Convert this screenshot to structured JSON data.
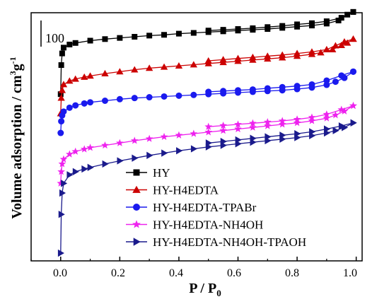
{
  "chart_data": {
    "type": "line",
    "xlabel_main": "P / P",
    "xlabel_sub": "0",
    "ylabel_main": "Volume adsorption / cm",
    "ylabel_sup": "3",
    "ylabel_g": "g",
    "ylabel_sup2": "-1",
    "scale_bar_label": "100",
    "xlim": [
      -0.1,
      1.02
    ],
    "ylim": [
      0,
      640
    ],
    "x_ticks": [
      "0.0",
      "0.2",
      "0.4",
      "0.6",
      "0.8",
      "1.0"
    ],
    "x_tick_values": [
      0.0,
      0.2,
      0.4,
      0.6,
      0.8,
      1.0
    ],
    "grid": false,
    "legend_position": "lower-center",
    "series": [
      {
        "name": "HY",
        "color": "#000000",
        "marker": "square",
        "adsorption": [
          [
            0.0,
            430
          ],
          [
            0.002,
            505
          ],
          [
            0.005,
            535
          ],
          [
            0.01,
            550
          ],
          [
            0.03,
            558
          ],
          [
            0.05,
            562
          ],
          [
            0.1,
            568
          ],
          [
            0.15,
            572
          ],
          [
            0.2,
            575
          ],
          [
            0.25,
            578
          ],
          [
            0.3,
            581
          ],
          [
            0.35,
            583
          ],
          [
            0.4,
            586
          ],
          [
            0.45,
            588
          ],
          [
            0.5,
            590
          ],
          [
            0.55,
            592
          ],
          [
            0.6,
            594
          ],
          [
            0.65,
            596
          ],
          [
            0.7,
            598
          ],
          [
            0.75,
            601
          ],
          [
            0.8,
            604
          ],
          [
            0.85,
            607
          ],
          [
            0.9,
            612
          ],
          [
            0.94,
            620
          ],
          [
            0.97,
            635
          ],
          [
            0.99,
            642
          ]
        ],
        "desorption": [
          [
            0.99,
            642
          ],
          [
            0.95,
            627
          ],
          [
            0.9,
            618
          ],
          [
            0.85,
            613
          ],
          [
            0.8,
            610
          ],
          [
            0.75,
            606
          ],
          [
            0.7,
            603
          ],
          [
            0.65,
            600
          ],
          [
            0.6,
            598
          ],
          [
            0.55,
            596
          ],
          [
            0.5,
            594
          ]
        ]
      },
      {
        "name": "HY-H4EDTA",
        "color": "#cc0000",
        "marker": "triangle-up",
        "adsorption": [
          [
            0.0,
            380
          ],
          [
            0.002,
            420
          ],
          [
            0.005,
            440
          ],
          [
            0.01,
            455
          ],
          [
            0.03,
            464
          ],
          [
            0.05,
            469
          ],
          [
            0.08,
            474
          ],
          [
            0.1,
            477
          ],
          [
            0.15,
            483
          ],
          [
            0.2,
            488
          ],
          [
            0.25,
            493
          ],
          [
            0.3,
            497
          ],
          [
            0.35,
            500
          ],
          [
            0.4,
            503
          ],
          [
            0.45,
            506
          ],
          [
            0.5,
            509
          ],
          [
            0.55,
            512
          ],
          [
            0.6,
            515
          ],
          [
            0.65,
            518
          ],
          [
            0.7,
            521
          ],
          [
            0.75,
            524
          ],
          [
            0.8,
            528
          ],
          [
            0.85,
            533
          ],
          [
            0.88,
            537
          ],
          [
            0.92,
            545
          ],
          [
            0.95,
            556
          ],
          [
            0.97,
            562
          ],
          [
            0.99,
            572
          ]
        ],
        "desorption": [
          [
            0.99,
            572
          ],
          [
            0.96,
            565
          ],
          [
            0.93,
            555
          ],
          [
            0.9,
            545
          ],
          [
            0.85,
            539
          ],
          [
            0.8,
            535
          ],
          [
            0.75,
            531
          ],
          [
            0.7,
            528
          ],
          [
            0.65,
            525
          ],
          [
            0.6,
            522
          ],
          [
            0.55,
            519
          ],
          [
            0.5,
            516
          ]
        ]
      },
      {
        "name": "HY-H4EDTA-TPABr",
        "color": "#1a1aee",
        "marker": "circle",
        "adsorption": [
          [
            0.0,
            330
          ],
          [
            0.002,
            360
          ],
          [
            0.005,
            375
          ],
          [
            0.01,
            385
          ],
          [
            0.03,
            395
          ],
          [
            0.05,
            401
          ],
          [
            0.08,
            406
          ],
          [
            0.1,
            409
          ],
          [
            0.15,
            413
          ],
          [
            0.2,
            417
          ],
          [
            0.25,
            420
          ],
          [
            0.3,
            422
          ],
          [
            0.35,
            424
          ],
          [
            0.4,
            426
          ],
          [
            0.45,
            428
          ],
          [
            0.5,
            430
          ],
          [
            0.55,
            432
          ],
          [
            0.6,
            434
          ],
          [
            0.65,
            436
          ],
          [
            0.7,
            438
          ],
          [
            0.75,
            440
          ],
          [
            0.8,
            443
          ],
          [
            0.85,
            447
          ],
          [
            0.9,
            454
          ],
          [
            0.93,
            462
          ],
          [
            0.96,
            472
          ],
          [
            0.99,
            488
          ]
        ],
        "desorption": [
          [
            0.99,
            488
          ],
          [
            0.95,
            478
          ],
          [
            0.9,
            465
          ],
          [
            0.85,
            455
          ],
          [
            0.8,
            451
          ],
          [
            0.75,
            448
          ],
          [
            0.7,
            445
          ],
          [
            0.65,
            442
          ],
          [
            0.6,
            440
          ],
          [
            0.55,
            438
          ],
          [
            0.5,
            436
          ]
        ]
      },
      {
        "name": "HY-H4EDTA-NH4OH",
        "color": "#ee22ee",
        "marker": "star",
        "adsorption": [
          [
            0.0,
            200
          ],
          [
            0.002,
            230
          ],
          [
            0.005,
            250
          ],
          [
            0.01,
            262
          ],
          [
            0.03,
            275
          ],
          [
            0.05,
            282
          ],
          [
            0.08,
            288
          ],
          [
            0.1,
            292
          ],
          [
            0.15,
            298
          ],
          [
            0.2,
            304
          ],
          [
            0.25,
            310
          ],
          [
            0.3,
            315
          ],
          [
            0.35,
            320
          ],
          [
            0.4,
            324
          ],
          [
            0.45,
            328
          ],
          [
            0.5,
            332
          ],
          [
            0.55,
            336
          ],
          [
            0.6,
            340
          ],
          [
            0.65,
            344
          ],
          [
            0.7,
            348
          ],
          [
            0.75,
            352
          ],
          [
            0.8,
            356
          ],
          [
            0.85,
            361
          ],
          [
            0.9,
            368
          ],
          [
            0.93,
            376
          ],
          [
            0.96,
            386
          ],
          [
            0.99,
            400
          ]
        ],
        "desorption": [
          [
            0.99,
            400
          ],
          [
            0.95,
            390
          ],
          [
            0.9,
            378
          ],
          [
            0.85,
            370
          ],
          [
            0.8,
            365
          ],
          [
            0.75,
            361
          ],
          [
            0.7,
            358
          ],
          [
            0.65,
            355
          ],
          [
            0.6,
            352
          ],
          [
            0.55,
            349
          ],
          [
            0.5,
            346
          ]
        ]
      },
      {
        "name": "HY-H4EDTA-NH4OH-TPAOH",
        "color": "#1a1a8c",
        "marker": "triangle-right",
        "adsorption": [
          [
            0.0,
            20
          ],
          [
            0.002,
            120
          ],
          [
            0.005,
            175
          ],
          [
            0.01,
            200
          ],
          [
            0.03,
            222
          ],
          [
            0.05,
            230
          ],
          [
            0.08,
            237
          ],
          [
            0.1,
            241
          ],
          [
            0.15,
            250
          ],
          [
            0.2,
            258
          ],
          [
            0.25,
            265
          ],
          [
            0.3,
            272
          ],
          [
            0.35,
            278
          ],
          [
            0.4,
            284
          ],
          [
            0.45,
            289
          ],
          [
            0.5,
            294
          ],
          [
            0.55,
            298
          ],
          [
            0.6,
            302
          ],
          [
            0.65,
            306
          ],
          [
            0.7,
            310
          ],
          [
            0.75,
            314
          ],
          [
            0.8,
            318
          ],
          [
            0.85,
            323
          ],
          [
            0.9,
            330
          ],
          [
            0.93,
            336
          ],
          [
            0.96,
            344
          ],
          [
            0.99,
            356
          ]
        ],
        "desorption": [
          [
            0.99,
            356
          ],
          [
            0.95,
            348
          ],
          [
            0.9,
            340
          ],
          [
            0.85,
            333
          ],
          [
            0.8,
            328
          ],
          [
            0.75,
            324
          ],
          [
            0.7,
            320
          ],
          [
            0.65,
            316
          ],
          [
            0.6,
            312
          ],
          [
            0.55,
            308
          ],
          [
            0.5,
            304
          ]
        ]
      }
    ]
  }
}
